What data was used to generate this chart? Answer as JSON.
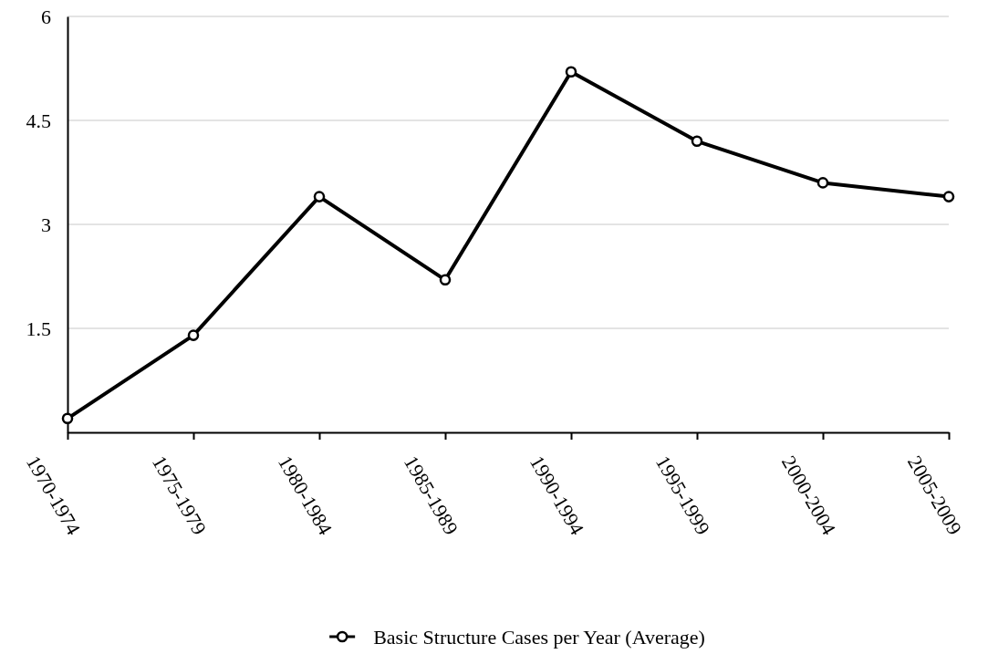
{
  "chart_data": {
    "type": "line",
    "categories": [
      "1970-1974",
      "1975-1979",
      "1980-1984",
      "1985-1989",
      "1990-1994",
      "1995-1999",
      "2000-2004",
      "2005-2009"
    ],
    "series": [
      {
        "name": "Basic Structure Cases per Year (Average)",
        "color": "#000000",
        "values": [
          0.2,
          1.4,
          3.4,
          2.2,
          5.2,
          4.2,
          3.6,
          3.4
        ]
      }
    ],
    "ylim": [
      0,
      6
    ],
    "yticks": [
      1.5,
      3,
      4.5,
      6
    ],
    "grid": "y",
    "legend": "bottom",
    "marker": "circle",
    "line_style": "solid"
  }
}
